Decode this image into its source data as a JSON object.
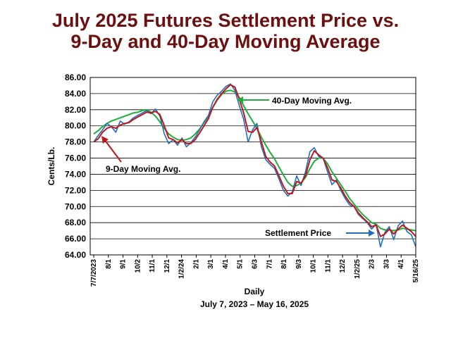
{
  "title_line1": "July 2025 Futures Settlement Price vs.",
  "title_line2": "9-Day and 40-Day Moving Average",
  "chart_data": {
    "type": "line",
    "ylabel": "Cents/Lb.",
    "xlabel": "Daily",
    "date_range_label": "July 7, 2023 – May 16, 2025",
    "ylim": [
      64,
      86
    ],
    "ytick_labels": [
      "64.00",
      "66.00",
      "68.00",
      "70.00",
      "72.00",
      "74.00",
      "76.00",
      "78.00",
      "80.00",
      "82.00",
      "84.00",
      "86.00"
    ],
    "xtick_labels": [
      "7/7/2023",
      "8/1",
      "9/1",
      "10/2",
      "11/1",
      "12/1",
      "1/2/24",
      "2/1",
      "3/1",
      "4/1",
      "5/1",
      "6/3",
      "7/1",
      "8/1",
      "9/3",
      "10/1",
      "11/1",
      "12/2",
      "1/2/25",
      "2/3",
      "3/3",
      "4/1",
      "5/16/25"
    ],
    "grid": true,
    "annotations": [
      {
        "text": "40-Day Moving Avg.",
        "series": "40-Day Moving Avg."
      },
      {
        "text": "9-Day Moving Avg.",
        "series": "9-Day Moving Avg."
      },
      {
        "text": "Settlement Price",
        "series": "Settlement Price"
      }
    ],
    "series": [
      {
        "name": "Settlement Price",
        "color": "#1f6fbf",
        "values": [
          78.0,
          78.8,
          79.5,
          80.3,
          79.9,
          79.2,
          80.6,
          80.2,
          80.5,
          81.0,
          81.3,
          81.6,
          81.9,
          81.5,
          82.1,
          81.2,
          79.0,
          77.8,
          78.3,
          77.6,
          78.5,
          77.4,
          77.9,
          78.6,
          79.5,
          80.5,
          81.3,
          83.0,
          83.8,
          84.3,
          84.9,
          85.2,
          84.4,
          82.5,
          80.8,
          78.0,
          79.5,
          80.3,
          77.4,
          75.8,
          75.2,
          74.7,
          73.4,
          72.0,
          71.3,
          71.8,
          73.8,
          72.6,
          74.3,
          76.8,
          77.3,
          76.2,
          76.0,
          74.3,
          72.7,
          73.3,
          72.0,
          71.0,
          70.2,
          70.0,
          69.0,
          68.5,
          68.0,
          67.2,
          67.8,
          65.0,
          66.8,
          67.5,
          65.9,
          67.6,
          68.2,
          66.9,
          66.5,
          65.0
        ]
      },
      {
        "name": "9-Day Moving Avg.",
        "color": "#c0161d",
        "values": [
          78.0,
          78.4,
          79.2,
          79.7,
          79.9,
          79.7,
          80.1,
          80.3,
          80.4,
          80.8,
          81.1,
          81.4,
          81.7,
          81.6,
          81.8,
          81.4,
          80.0,
          78.5,
          78.3,
          77.9,
          78.3,
          77.8,
          77.8,
          78.3,
          79.1,
          80.0,
          80.9,
          82.3,
          83.3,
          84.0,
          84.6,
          85.1,
          84.8,
          83.3,
          81.6,
          79.3,
          79.2,
          79.8,
          78.0,
          76.2,
          75.5,
          75.0,
          73.8,
          72.5,
          71.6,
          71.6,
          73.1,
          72.9,
          73.8,
          75.8,
          76.9,
          76.4,
          76.0,
          74.8,
          73.3,
          73.1,
          72.3,
          71.3,
          70.5,
          70.0,
          69.2,
          68.6,
          68.1,
          67.5,
          67.7,
          66.3,
          66.6,
          67.2,
          66.6,
          67.2,
          67.7,
          67.3,
          66.9,
          66.3
        ]
      },
      {
        "name": "40-Day Moving Avg.",
        "color": "#1fae3a",
        "values": [
          79.0,
          79.4,
          79.9,
          80.3,
          80.6,
          80.8,
          81.0,
          81.2,
          81.4,
          81.6,
          81.7,
          81.9,
          82.0,
          81.7,
          81.2,
          80.5,
          79.7,
          79.0,
          78.6,
          78.3,
          78.2,
          78.3,
          78.5,
          79.0,
          79.6,
          80.4,
          81.2,
          82.3,
          83.2,
          83.9,
          84.3,
          84.4,
          84.2,
          83.5,
          82.5,
          81.5,
          80.6,
          79.7,
          78.6,
          77.6,
          76.7,
          75.9,
          74.9,
          73.9,
          73.0,
          72.5,
          72.6,
          72.9,
          73.6,
          74.7,
          75.6,
          76.0,
          76.0,
          75.3,
          74.3,
          73.5,
          72.7,
          71.9,
          71.0,
          70.3,
          69.6,
          69.0,
          68.5,
          68.0,
          67.8,
          67.3,
          67.1,
          67.1,
          67.0,
          67.1,
          67.3,
          67.2,
          67.1,
          67.0
        ]
      }
    ]
  }
}
